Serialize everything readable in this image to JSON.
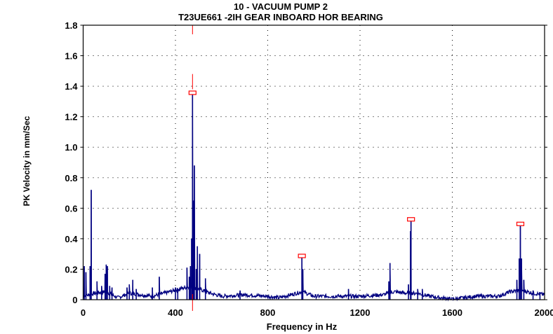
{
  "chart_data": {
    "type": "line",
    "title": "10   - VACUUM PUMP 2",
    "subtitle": "T23UE661   -2IH   GEAR INBOARD HOR BEARING",
    "xlabel": "Frequency in Hz",
    "ylabel": "PK Velocity in mm/Sec",
    "xlim": [
      0,
      2000
    ],
    "ylim": [
      0,
      1.8
    ],
    "xticks": [
      "0",
      "400",
      "800",
      "1200",
      "1600",
      "2000"
    ],
    "yticks": [
      "0",
      "0.2",
      "0.4",
      "0.6",
      "0.8",
      "1.0",
      "1.2",
      "1.4",
      "1.6",
      "1.8"
    ],
    "grid": true,
    "series_color": "#000080",
    "marker_color": "#ff0000",
    "cursor_hz": 474,
    "peaks": [
      [
        5,
        0.22
      ],
      [
        12,
        0.18
      ],
      [
        30,
        0.22
      ],
      [
        35,
        0.72
      ],
      [
        60,
        0.12
      ],
      [
        80,
        0.09
      ],
      [
        95,
        0.17
      ],
      [
        100,
        0.23
      ],
      [
        105,
        0.22
      ],
      [
        115,
        0.09
      ],
      [
        125,
        0.08
      ],
      [
        190,
        0.08
      ],
      [
        200,
        0.1
      ],
      [
        215,
        0.13
      ],
      [
        230,
        0.07
      ],
      [
        300,
        0.08
      ],
      [
        330,
        0.15
      ],
      [
        400,
        0.08
      ],
      [
        410,
        0.07
      ],
      [
        450,
        0.21
      ],
      [
        460,
        0.15
      ],
      [
        465,
        0.22
      ],
      [
        470,
        0.4
      ],
      [
        474,
        1.35
      ],
      [
        478,
        0.65
      ],
      [
        482,
        0.88
      ],
      [
        490,
        0.2
      ],
      [
        495,
        0.35
      ],
      [
        505,
        0.3
      ],
      [
        530,
        0.14
      ],
      [
        680,
        0.06
      ],
      [
        948,
        0.28
      ],
      [
        952,
        0.2
      ],
      [
        1150,
        0.07
      ],
      [
        1325,
        0.12
      ],
      [
        1330,
        0.24
      ],
      [
        1410,
        0.1
      ],
      [
        1421,
        0.52
      ],
      [
        1419,
        0.45
      ],
      [
        1450,
        0.07
      ],
      [
        1470,
        0.07
      ],
      [
        1880,
        0.13
      ],
      [
        1890,
        0.27
      ],
      [
        1895,
        0.49
      ],
      [
        1900,
        0.27
      ],
      [
        1910,
        0.13
      ],
      [
        1950,
        0.06
      ],
      [
        1980,
        0.05
      ]
    ],
    "noise_floor": [
      [
        0,
        0.02
      ],
      [
        50,
        0.04
      ],
      [
        100,
        0.05
      ],
      [
        150,
        0.01
      ],
      [
        200,
        0.04
      ],
      [
        250,
        0.03
      ],
      [
        300,
        0.02
      ],
      [
        350,
        0.04
      ],
      [
        400,
        0.06
      ],
      [
        450,
        0.08
      ],
      [
        500,
        0.07
      ],
      [
        550,
        0.04
      ],
      [
        600,
        0.02
      ],
      [
        700,
        0.03
      ],
      [
        800,
        0.02
      ],
      [
        850,
        0.01
      ],
      [
        900,
        0.03
      ],
      [
        950,
        0.05
      ],
      [
        1000,
        0.02
      ],
      [
        1100,
        0.02
      ],
      [
        1200,
        0.02
      ],
      [
        1300,
        0.03
      ],
      [
        1350,
        0.05
      ],
      [
        1400,
        0.04
      ],
      [
        1450,
        0.04
      ],
      [
        1500,
        0.02
      ],
      [
        1600,
        0.0
      ],
      [
        1700,
        0.02
      ],
      [
        1800,
        0.02
      ],
      [
        1850,
        0.05
      ],
      [
        1900,
        0.06
      ],
      [
        1950,
        0.04
      ],
      [
        2000,
        0.03
      ]
    ],
    "markers": [
      {
        "x": 474,
        "y": 1.35
      },
      {
        "x": 948,
        "y": 0.28
      },
      {
        "x": 1421,
        "y": 0.52
      },
      {
        "x": 1895,
        "y": 0.49
      }
    ]
  }
}
